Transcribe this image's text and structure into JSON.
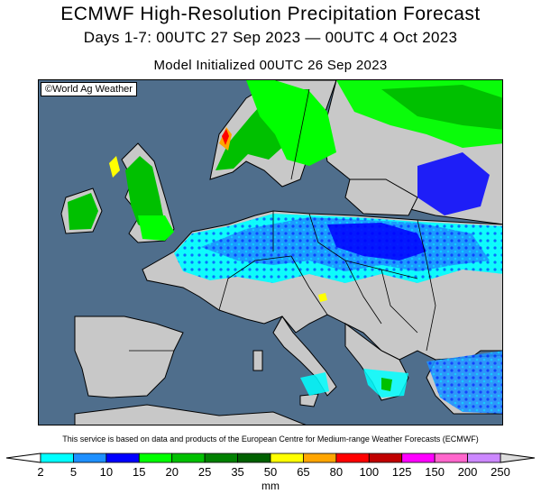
{
  "header": {
    "title": "ECMWF High-Resolution Precipitation Forecast",
    "period": "Days 1-7: 00UTC 27 Sep 2023 — 00UTC 4 Oct 2023",
    "init": "Model Initialized 00UTC 26 Sep 2023"
  },
  "map": {
    "copyright": "©World Ag Weather",
    "region": "Europe",
    "colors": {
      "sea": "#4f6e8c",
      "land": "#c8c8c8",
      "border": "#000000"
    }
  },
  "footer": {
    "disclaimer": "This service is based on data and products of the European Centre for Medium-range Weather Forecasts (ECMWF)"
  },
  "legend": {
    "unit": "mm",
    "ticks": [
      "2",
      "5",
      "10",
      "15",
      "20",
      "25",
      "35",
      "50",
      "65",
      "80",
      "100",
      "125",
      "150",
      "200",
      "250"
    ],
    "colors": [
      "#00ffff",
      "#1e90ff",
      "#0000ff",
      "#00ff00",
      "#00c000",
      "#008000",
      "#006000",
      "#ffff00",
      "#ffa500",
      "#ff0000",
      "#c00000",
      "#ff00ff",
      "#ff66cc",
      "#cc88ff"
    ],
    "low_color": "#ffffff",
    "high_color": "#dddddd"
  }
}
